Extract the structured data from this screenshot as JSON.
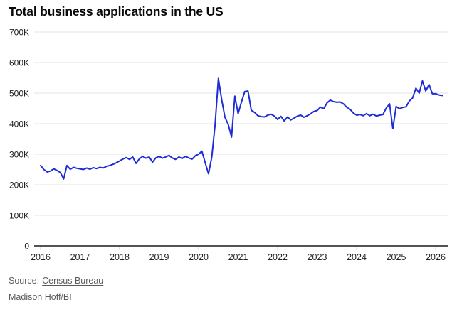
{
  "title": "Total business applications in the US",
  "source": {
    "prefix": "Source:",
    "link_label": "Census Bureau"
  },
  "byline": "Madison Hoff/BI",
  "colors": {
    "line": "#1d2cd6",
    "grid": "#e3e3e3",
    "axis": "#1a1a1a",
    "tick_label": "#222222",
    "title_text": "#0a0a0a",
    "muted_text": "#5c5c5c",
    "tick_mark": "#cccccc",
    "background": "#ffffff"
  },
  "chart_data": {
    "type": "line",
    "title": "Total business applications in the US",
    "x_start": "2016-01",
    "x_freq": "monthly",
    "x_ticks": [
      "2016",
      "2017",
      "2018",
      "2019",
      "2020",
      "2021",
      "2022",
      "2023",
      "2024",
      "2025",
      "2026"
    ],
    "y_ticks": [
      {
        "label": "700K",
        "value": 700000
      },
      {
        "label": "600K",
        "value": 600000
      },
      {
        "label": "500K",
        "value": 500000
      },
      {
        "label": "400K",
        "value": 400000
      },
      {
        "label": "300K",
        "value": 300000
      },
      {
        "label": "200K",
        "value": 200000
      },
      {
        "label": "100K",
        "value": 100000
      },
      {
        "label": "0",
        "value": 0
      }
    ],
    "ylim": [
      0,
      700000
    ],
    "grid": "horizontal",
    "legend": "none",
    "series": [
      {
        "name": "Total business applications",
        "values": [
          263000,
          250000,
          242000,
          245000,
          252000,
          247000,
          240000,
          219000,
          263000,
          251000,
          257000,
          254000,
          252000,
          250000,
          255000,
          251000,
          256000,
          253000,
          257000,
          255000,
          260000,
          263000,
          267000,
          272000,
          278000,
          284000,
          289000,
          283000,
          291000,
          270000,
          285000,
          293000,
          287000,
          291000,
          274000,
          288000,
          293000,
          287000,
          291000,
          296000,
          288000,
          283000,
          291000,
          286000,
          293000,
          288000,
          284000,
          295000,
          300000,
          310000,
          272000,
          236000,
          290000,
          395000,
          548000,
          479000,
          421000,
          398000,
          356000,
          490000,
          433000,
          470000,
          505000,
          507000,
          444000,
          437000,
          426000,
          423000,
          422000,
          428000,
          431000,
          425000,
          414000,
          424000,
          409000,
          422000,
          412000,
          418000,
          425000,
          428000,
          421000,
          426000,
          432000,
          440000,
          443000,
          454000,
          449000,
          468000,
          477000,
          472000,
          470000,
          471000,
          465000,
          454000,
          447000,
          435000,
          428000,
          430000,
          426000,
          433000,
          426000,
          431000,
          425000,
          428000,
          430000,
          451000,
          465000,
          384000,
          456000,
          449000,
          453000,
          455000,
          474000,
          484000,
          516000,
          500000,
          540000,
          507000,
          528000,
          498000,
          498000,
          494000,
          492000
        ]
      }
    ]
  }
}
